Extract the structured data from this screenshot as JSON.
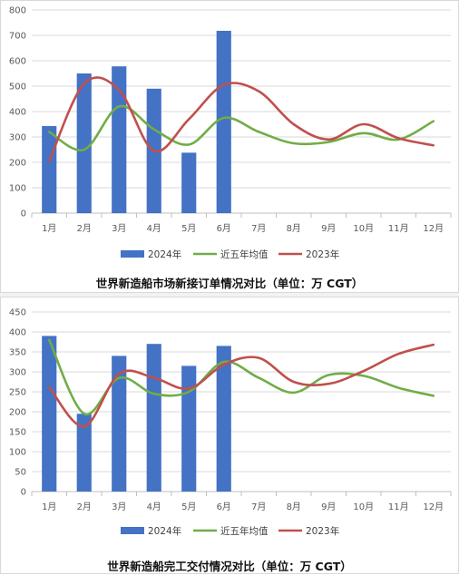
{
  "chart_data": [
    {
      "type": "bar+line",
      "title": "世界新造船市场新接订单情况对比（单位：万 CGT）",
      "categories": [
        "1月",
        "2月",
        "3月",
        "4月",
        "5月",
        "6月",
        "7月",
        "8月",
        "9月",
        "10月",
        "11月",
        "12月"
      ],
      "ylim": [
        0,
        800
      ],
      "yticks": [
        0,
        100,
        200,
        300,
        400,
        500,
        600,
        700,
        800
      ],
      "grid": true,
      "legend_position": "bottom",
      "series": [
        {
          "name": "2024年",
          "kind": "bar",
          "color": "#4472c4",
          "values": [
            343,
            550,
            578,
            490,
            238,
            718,
            null,
            null,
            null,
            null,
            null,
            null
          ]
        },
        {
          "name": "近五年均值",
          "kind": "line",
          "color": "#70ad47",
          "values": [
            320,
            250,
            420,
            330,
            270,
            375,
            320,
            275,
            280,
            315,
            290,
            362
          ]
        },
        {
          "name": "2023年",
          "kind": "line",
          "color": "#c0504d",
          "values": [
            205,
            510,
            485,
            245,
            370,
            505,
            480,
            350,
            290,
            350,
            295,
            267
          ]
        }
      ]
    },
    {
      "type": "bar+line",
      "title": "世界新造船完工交付情况对比（单位：万 CGT）",
      "categories": [
        "1月",
        "2月",
        "3月",
        "4月",
        "5月",
        "6月",
        "7月",
        "8月",
        "9月",
        "10月",
        "11月",
        "12月"
      ],
      "ylim": [
        0,
        450
      ],
      "yticks": [
        0,
        50,
        100,
        150,
        200,
        250,
        300,
        350,
        400,
        450
      ],
      "grid": true,
      "legend_position": "bottom",
      "series": [
        {
          "name": "2024年",
          "kind": "bar",
          "color": "#4472c4",
          "values": [
            390,
            195,
            340,
            370,
            315,
            365,
            null,
            null,
            null,
            null,
            null,
            null
          ]
        },
        {
          "name": "近五年均值",
          "kind": "line",
          "color": "#70ad47",
          "values": [
            380,
            195,
            285,
            245,
            250,
            325,
            285,
            248,
            292,
            290,
            260,
            240
          ]
        },
        {
          "name": "2023年",
          "kind": "line",
          "color": "#c0504d",
          "values": [
            262,
            163,
            295,
            285,
            258,
            318,
            335,
            275,
            270,
            302,
            345,
            368
          ]
        }
      ]
    }
  ]
}
